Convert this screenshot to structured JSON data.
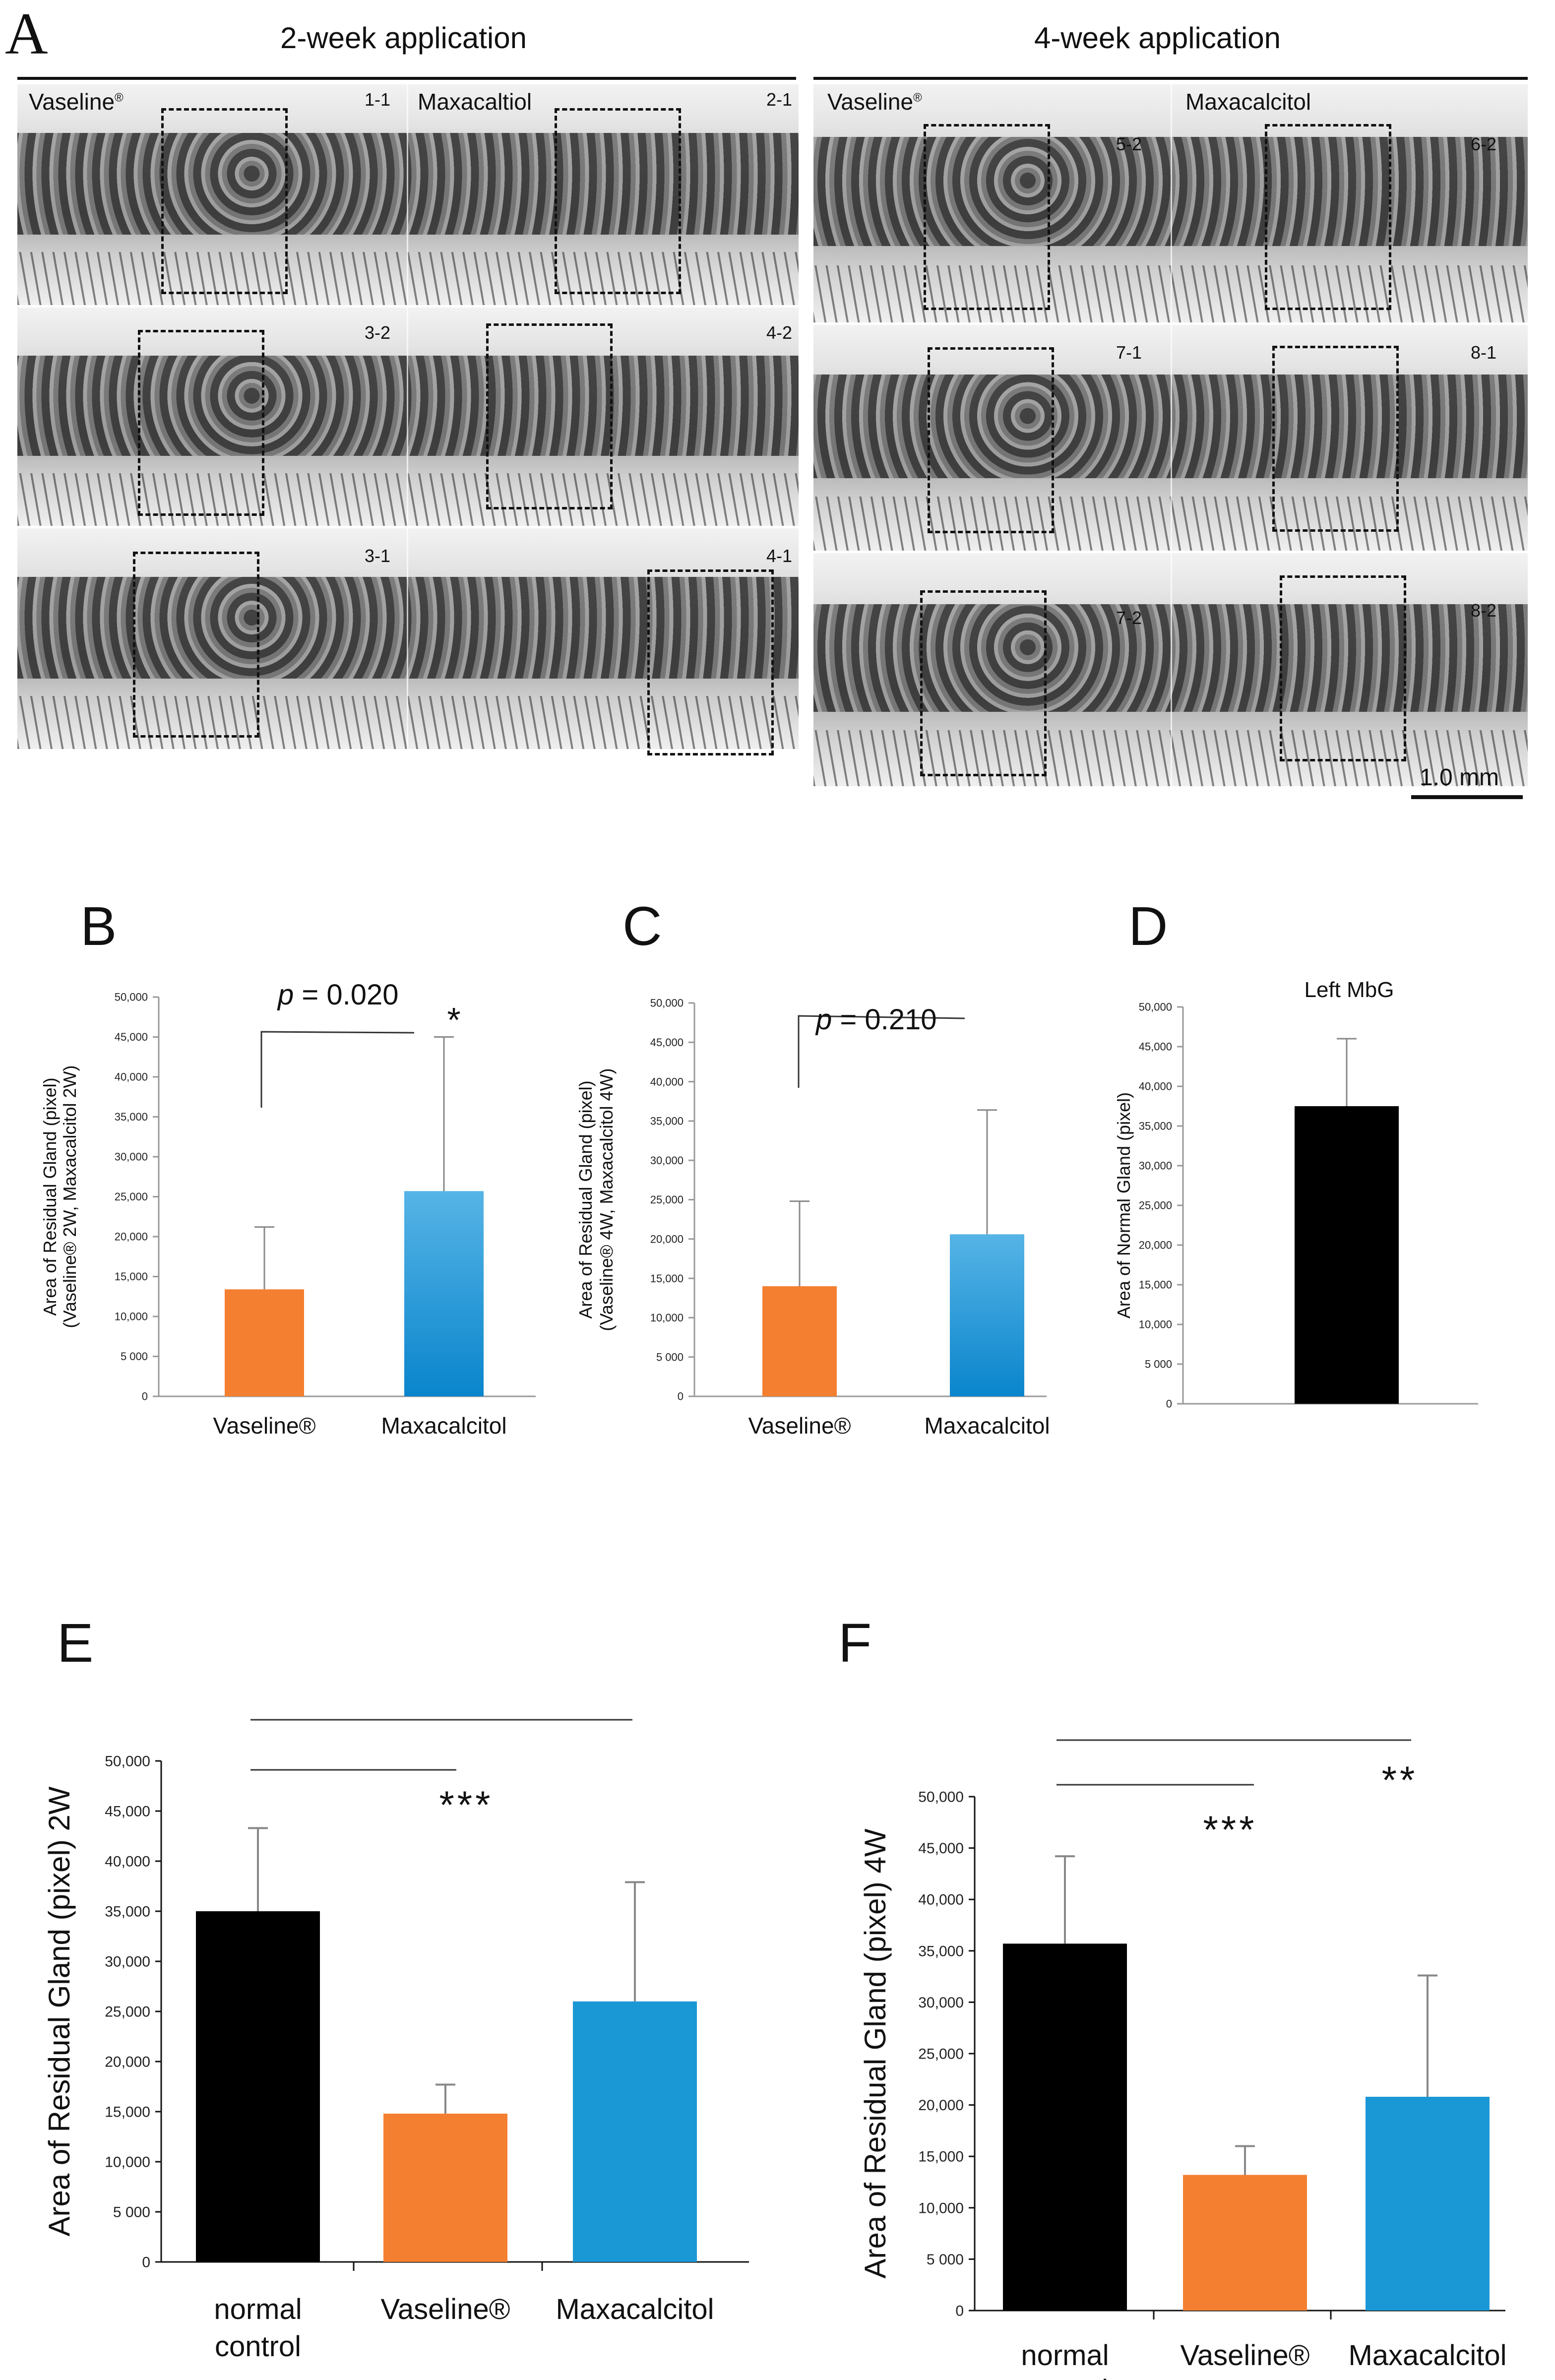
{
  "panel_a": {
    "letter": "A",
    "group_2w": {
      "title": "2-week application",
      "col_left_label": "Vaseline",
      "col_left_mark": "®",
      "col_right_label": "Maxacaltiol",
      "numbers": [
        "1-1",
        "2-1",
        "3-2",
        "4-2",
        "3-1",
        "4-1"
      ]
    },
    "group_4w": {
      "title": "4-week application",
      "col_left_label": "Vaseline",
      "col_left_mark": "®",
      "col_right_label": "Maxacalcitol",
      "numbers": [
        "5-2",
        "6-2",
        "7-1",
        "8-1",
        "7-2",
        "8-2"
      ]
    },
    "scale_bar_label": "1.0 mm"
  },
  "colors": {
    "orange": "#F47F30",
    "blue": "#1A98D6",
    "black": "#000000"
  },
  "chart_data": [
    {
      "panel": "B",
      "type": "bar",
      "categories": [
        "Vaseline®",
        "Maxacalcitol"
      ],
      "values": [
        13400,
        25700
      ],
      "errors": [
        7800,
        19300
      ],
      "ylabel_line1": "Area of Residual Gland (pixel)",
      "ylabel_line2": "(Vaseline® 2W, Maxacalcitol 2W)",
      "ylim": [
        0,
        50000
      ],
      "yticks": [
        "0",
        "5 000",
        "10,000",
        "15,000",
        "20,000",
        "25,000",
        "30,000",
        "35,000",
        "40,000",
        "45,000",
        "50,000"
      ],
      "annotations": [
        {
          "text": "p = 0.020",
          "p_prefix": "p",
          "p_value": " = 0.020"
        },
        {
          "text": "*"
        }
      ]
    },
    {
      "panel": "C",
      "type": "bar",
      "categories": [
        "Vaseline®",
        "Maxacalcitol"
      ],
      "values": [
        14000,
        20600
      ],
      "errors": [
        10800,
        15800
      ],
      "ylabel_line1": "Area of Residual Gland (pixel)",
      "ylabel_line2": "(Vaseline® 4W, Maxacalcitol 4W)",
      "ylim": [
        0,
        50000
      ],
      "yticks": [
        "0",
        "5 000",
        "10,000",
        "15,000",
        "20,000",
        "25,000",
        "30,000",
        "35,000",
        "40,000",
        "45,000",
        "50,000"
      ],
      "annotations": [
        {
          "text": "p = 0.210",
          "p_prefix": "p",
          "p_value": " = 0.210"
        }
      ]
    },
    {
      "panel": "D",
      "type": "bar",
      "title": "Left MbG",
      "categories": [
        ""
      ],
      "values": [
        37500
      ],
      "errors": [
        8500
      ],
      "ylabel_line1": "Area of Normal Gland (pixel)",
      "ylim": [
        0,
        50000
      ],
      "yticks": [
        "0",
        "5 000",
        "10,000",
        "15,000",
        "20,000",
        "25,000",
        "30,000",
        "35,000",
        "40,000",
        "45,000",
        "50,000"
      ]
    },
    {
      "panel": "E",
      "type": "bar",
      "categories": [
        "normal control",
        "Vaseline®",
        "Maxacalcitol"
      ],
      "category_lines": [
        [
          "normal",
          "control"
        ],
        [
          "Vaseline®"
        ],
        [
          "Maxacalcitol"
        ]
      ],
      "values": [
        35000,
        14800,
        26000
      ],
      "errors": [
        8300,
        2900,
        11900
      ],
      "ylabel_line1": "Area of Residual Gland (pixel) 2W",
      "ylim": [
        0,
        50000
      ],
      "yticks": [
        "0",
        "5 000",
        "10,000",
        "15,000",
        "20,000",
        "25,000",
        "30,000",
        "35,000",
        "40,000",
        "45,000",
        "50,000"
      ],
      "annotations": [
        {
          "text": "***"
        }
      ]
    },
    {
      "panel": "F",
      "type": "bar",
      "categories": [
        "normal control",
        "Vaseline®",
        "Maxacalcitol"
      ],
      "category_lines": [
        [
          "normal",
          "control"
        ],
        [
          "Vaseline®"
        ],
        [
          "Maxacalcitol"
        ]
      ],
      "values": [
        35700,
        13200,
        20800
      ],
      "errors": [
        8500,
        2800,
        11800
      ],
      "ylabel_line1": "Area of Residual Gland (pixel) 4W",
      "ylim": [
        0,
        50000
      ],
      "yticks": [
        "0",
        "5 000",
        "10,000",
        "15,000",
        "20,000",
        "25,000",
        "30,000",
        "35,000",
        "40,000",
        "45,000",
        "50,000"
      ],
      "annotations": [
        {
          "text": "***"
        },
        {
          "text": "**"
        }
      ]
    }
  ]
}
